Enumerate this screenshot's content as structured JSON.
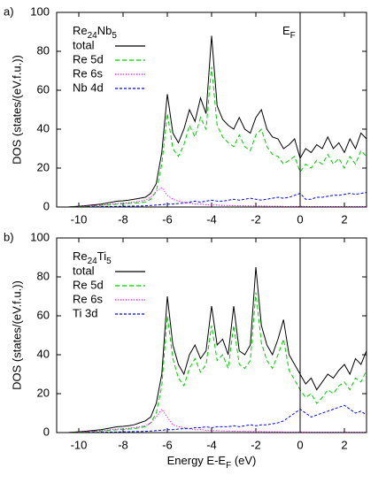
{
  "chart_data": [
    {
      "type": "line",
      "panel_label": "a)",
      "title_parts": [
        "Re",
        "24",
        "Nb",
        "5"
      ],
      "annotation_parts": [
        "E",
        "F"
      ],
      "ylabel": "DOS (states/(eV.f.u.))",
      "xlim": [
        -11,
        3
      ],
      "ylim": [
        0,
        100
      ],
      "xticks": [
        -10,
        -8,
        -6,
        -4,
        -2,
        0,
        2
      ],
      "yticks": [
        0,
        20,
        40,
        60,
        80,
        100
      ],
      "vline": 0,
      "legend": "upper left",
      "x": [
        -11,
        -10.75,
        -10.5,
        -10.25,
        -10,
        -9.75,
        -9.5,
        -9.25,
        -9,
        -8.75,
        -8.5,
        -8.25,
        -8,
        -7.75,
        -7.5,
        -7.25,
        -7,
        -6.75,
        -6.5,
        -6.25,
        -6,
        -5.75,
        -5.5,
        -5.25,
        -5,
        -4.75,
        -4.5,
        -4.25,
        -4,
        -3.75,
        -3.5,
        -3.25,
        -3,
        -2.75,
        -2.5,
        -2.25,
        -2,
        -1.75,
        -1.5,
        -1.25,
        -1,
        -0.75,
        -0.5,
        -0.25,
        0,
        0.25,
        0.5,
        0.75,
        1,
        1.25,
        1.5,
        1.75,
        2,
        2.25,
        2.5,
        2.75,
        3
      ],
      "series": [
        {
          "name": "total",
          "color": "#000000",
          "dash": "solid",
          "values": [
            0,
            0,
            0,
            0.2,
            0.4,
            0.6,
            0.9,
            1.2,
            1.5,
            2,
            2.5,
            3,
            3.2,
            3.5,
            4,
            4.5,
            5,
            7,
            12,
            28,
            58,
            38,
            33,
            40,
            50,
            44,
            56,
            48,
            88,
            52,
            45,
            42,
            40,
            46,
            40,
            38,
            46,
            50,
            40,
            36,
            35,
            30,
            32,
            35,
            25,
            30,
            28,
            32,
            30,
            36,
            30,
            33,
            28,
            35,
            30,
            38,
            35
          ]
        },
        {
          "name": "Re 5d",
          "color": "#00cc00",
          "dash": "dashed",
          "values": [
            0,
            0,
            0,
            0.1,
            0.2,
            0.3,
            0.4,
            0.6,
            0.8,
            1,
            1.2,
            1.5,
            1.6,
            1.8,
            2,
            2.2,
            2.5,
            4,
            8,
            22,
            48,
            30,
            26,
            32,
            42,
            36,
            46,
            40,
            72,
            42,
            36,
            33,
            31,
            37,
            31,
            29,
            37,
            40,
            31,
            27,
            26,
            22,
            24,
            26,
            18,
            22,
            20,
            24,
            22,
            27,
            22,
            25,
            20,
            26,
            22,
            29,
            26
          ]
        },
        {
          "name": "Re 6s",
          "color": "#ff00ff",
          "dash": "dotted",
          "values": [
            0,
            0,
            0,
            0.1,
            0.2,
            0.4,
            0.6,
            0.8,
            1,
            1.2,
            1.5,
            1.8,
            2,
            2.2,
            2.5,
            3,
            3.5,
            5,
            8,
            10,
            6,
            4,
            3,
            2.5,
            2,
            1.5,
            1.5,
            1.2,
            1,
            1,
            0.8,
            0.8,
            0.7,
            0.6,
            0.6,
            0.5,
            0.5,
            0.5,
            0.4,
            0.4,
            0.4,
            0.3,
            0.3,
            0.3,
            0.3,
            0.3,
            0.2,
            0.2,
            0.2,
            0.2,
            0.2,
            0.2,
            0.2,
            0.2,
            0.2,
            0.2,
            0.2
          ]
        },
        {
          "name": "Nb 4d",
          "color": "#0000ff",
          "dash": "short-dashed",
          "values": [
            0,
            0,
            0,
            0,
            0,
            0,
            0.1,
            0.1,
            0.2,
            0.2,
            0.3,
            0.3,
            0.4,
            0.4,
            0.5,
            0.5,
            0.6,
            0.8,
            1,
            1.2,
            1.5,
            1.5,
            1.8,
            2,
            2.5,
            3,
            2.5,
            3,
            3.5,
            3,
            3,
            3.5,
            4,
            3.5,
            4,
            4.5,
            4,
            3.5,
            4,
            4.5,
            5,
            4.5,
            5,
            6,
            7,
            4,
            4,
            5,
            5,
            5.5,
            6,
            6,
            6.5,
            7,
            6.5,
            7,
            7.5
          ]
        }
      ]
    },
    {
      "type": "line",
      "panel_label": "b)",
      "title_parts": [
        "Re",
        "24",
        "Ti",
        "5"
      ],
      "ylabel": "DOS (states/(eV.f.u.))",
      "xlabel_parts": [
        "Energy E-E",
        "F",
        " (eV)"
      ],
      "xlim": [
        -11,
        3
      ],
      "ylim": [
        0,
        100
      ],
      "xticks": [
        -10,
        -8,
        -6,
        -4,
        -2,
        0,
        2
      ],
      "yticks": [
        0,
        20,
        40,
        60,
        80,
        100
      ],
      "vline": 0,
      "legend": "upper left",
      "x": [
        -11,
        -10.75,
        -10.5,
        -10.25,
        -10,
        -9.75,
        -9.5,
        -9.25,
        -9,
        -8.75,
        -8.5,
        -8.25,
        -8,
        -7.75,
        -7.5,
        -7.25,
        -7,
        -6.75,
        -6.5,
        -6.25,
        -6,
        -5.75,
        -5.5,
        -5.25,
        -5,
        -4.75,
        -4.5,
        -4.25,
        -4,
        -3.75,
        -3.5,
        -3.25,
        -3,
        -2.75,
        -2.5,
        -2.25,
        -2,
        -1.75,
        -1.5,
        -1.25,
        -1,
        -0.75,
        -0.5,
        -0.25,
        0,
        0.25,
        0.5,
        0.75,
        1,
        1.25,
        1.5,
        1.75,
        2,
        2.25,
        2.5,
        2.75,
        3
      ],
      "series": [
        {
          "name": "total",
          "color": "#000000",
          "dash": "solid",
          "values": [
            0,
            0,
            0,
            0.2,
            0.4,
            0.6,
            0.9,
            1.2,
            1.5,
            2,
            2.5,
            3,
            3.2,
            3.5,
            4,
            5,
            6,
            8,
            15,
            30,
            70,
            45,
            35,
            30,
            40,
            45,
            38,
            42,
            65,
            45,
            48,
            40,
            65,
            42,
            40,
            45,
            85,
            55,
            45,
            40,
            48,
            58,
            40,
            35,
            30,
            25,
            28,
            22,
            26,
            30,
            28,
            32,
            35,
            30,
            38,
            35,
            42
          ]
        },
        {
          "name": "Re 5d",
          "color": "#00cc00",
          "dash": "dashed",
          "values": [
            0,
            0,
            0,
            0.1,
            0.2,
            0.3,
            0.4,
            0.6,
            0.8,
            1,
            1.2,
            1.5,
            1.6,
            1.8,
            2,
            2.5,
            3,
            5,
            10,
            24,
            60,
            38,
            28,
            24,
            33,
            38,
            31,
            35,
            55,
            37,
            40,
            33,
            55,
            35,
            33,
            37,
            72,
            46,
            37,
            33,
            40,
            48,
            32,
            27,
            22,
            18,
            20,
            15,
            18,
            22,
            20,
            24,
            26,
            22,
            28,
            26,
            32
          ]
        },
        {
          "name": "Re 6s",
          "color": "#ff00ff",
          "dash": "dotted",
          "values": [
            0,
            0,
            0,
            0.1,
            0.2,
            0.4,
            0.6,
            0.8,
            1,
            1.2,
            1.5,
            1.8,
            2,
            2.2,
            2.5,
            3,
            3.5,
            5,
            8,
            12,
            8,
            4,
            3,
            2.5,
            2,
            1.5,
            1.5,
            1.2,
            1,
            1,
            0.8,
            0.8,
            0.7,
            0.6,
            0.6,
            0.5,
            0.5,
            0.5,
            0.4,
            0.4,
            0.4,
            0.3,
            0.3,
            0.3,
            0.3,
            0.3,
            0.2,
            0.2,
            0.2,
            0.2,
            0.2,
            0.2,
            0.2,
            0.2,
            0.2,
            0.2,
            0.2
          ]
        },
        {
          "name": "Ti 3d",
          "color": "#0000ff",
          "dash": "short-dashed",
          "values": [
            0,
            0,
            0,
            0,
            0,
            0,
            0.1,
            0.1,
            0.2,
            0.2,
            0.3,
            0.3,
            0.4,
            0.4,
            0.5,
            0.5,
            0.6,
            0.8,
            1,
            1.2,
            1.5,
            1.5,
            1.8,
            2,
            2,
            2.5,
            2.5,
            3,
            2.5,
            3,
            3,
            3,
            3.5,
            3,
            3.5,
            4,
            3.5,
            4,
            4,
            4.5,
            5,
            6,
            8,
            10,
            12,
            10,
            8,
            9,
            10,
            11,
            12,
            13,
            14,
            12,
            10,
            11,
            9
          ]
        }
      ]
    }
  ]
}
